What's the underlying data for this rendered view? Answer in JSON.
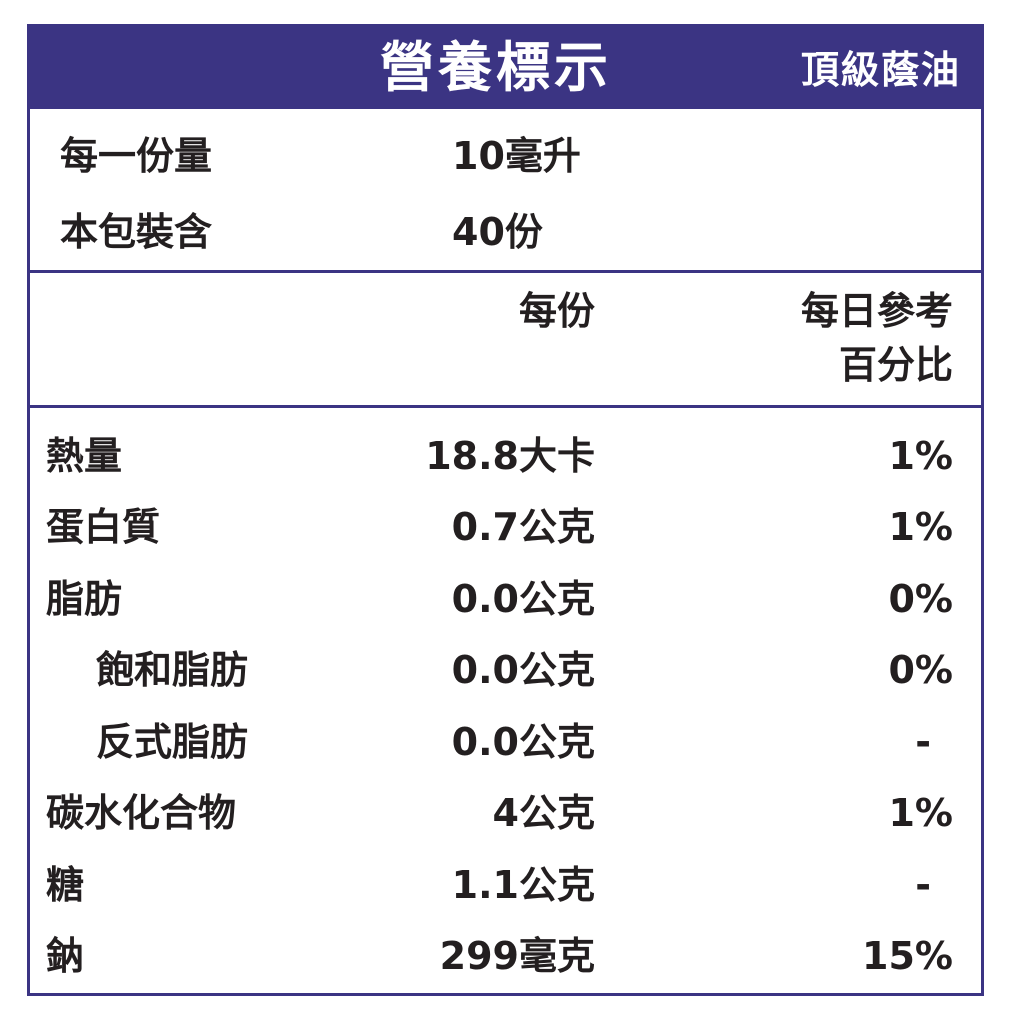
{
  "header": {
    "title": "營養標示",
    "product": "頂級蔭油"
  },
  "serving": {
    "size_label": "每一份量",
    "size_value": "10毫升",
    "count_label": "本包裝含",
    "count_value": "40份"
  },
  "columns": {
    "per_serving": "每份",
    "daily_line1": "每日參考",
    "daily_line2": "百分比"
  },
  "nutrients": [
    {
      "name": "熱量",
      "amount": "18.8大卡",
      "daily": "1%"
    },
    {
      "name": "蛋白質",
      "amount": "0.7公克",
      "daily": "1%"
    },
    {
      "name": "脂肪",
      "amount": "0.0公克",
      "daily": "0%"
    },
    {
      "name": "飽和脂肪",
      "amount": "0.0公克",
      "daily": "0%"
    },
    {
      "name": "反式脂肪",
      "amount": "0.0公克",
      "daily": "-"
    },
    {
      "name": "碳水化合物",
      "amount": "4公克",
      "daily": "1%"
    },
    {
      "name": "糖",
      "amount": "1.1公克",
      "daily": "-"
    },
    {
      "name": "鈉",
      "amount": "299毫克",
      "daily": "15%"
    }
  ],
  "colors": {
    "accent": "#3b3483"
  }
}
